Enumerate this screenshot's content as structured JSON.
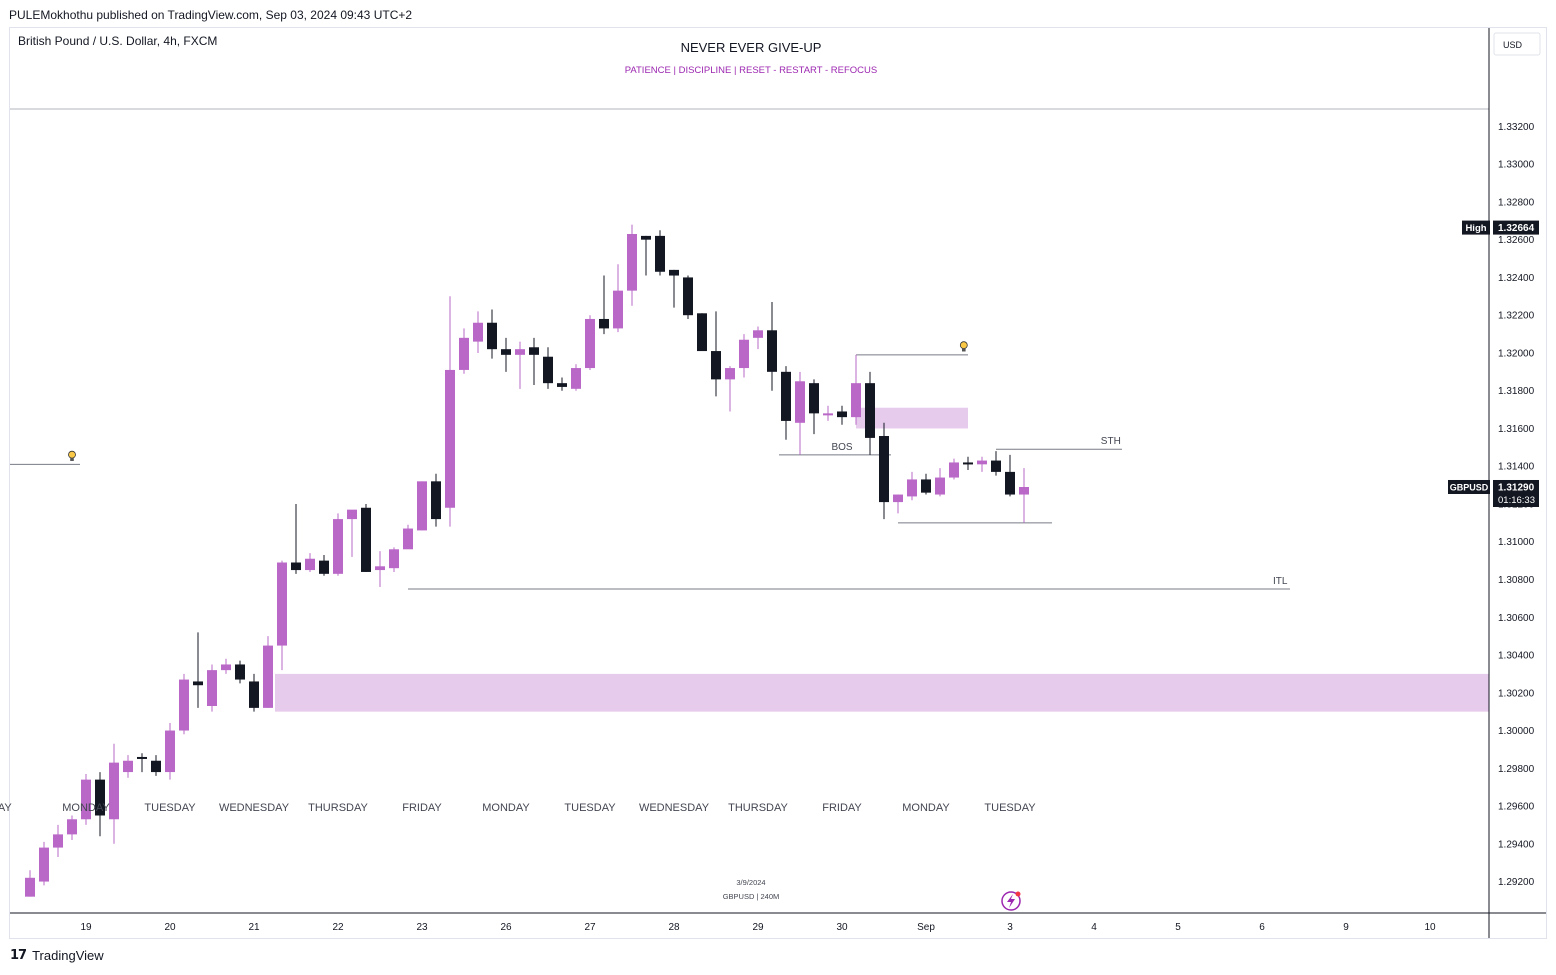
{
  "header": {
    "published": "PULEMokhothu published on TradingView.com, Sep 03, 2024 09:43 UTC+2"
  },
  "footer": {
    "brand": "TradingView"
  },
  "chart_data": {
    "type": "candlestick",
    "symbol_title": "British Pound / U.S. Dollar, 4h, FXCM",
    "title": "NEVER EVER GIVE-UP",
    "subtitle": "PATIENCE   |   DISCIPLINE   |   RESET - RESTART - REFOCUS",
    "currency": "USD",
    "colors": {
      "up": "#ba68c8",
      "down": "#131722",
      "zone": "#e1bee7",
      "subtitle": "#9c27b0"
    },
    "ylim": [
      1.2906,
      1.337
    ],
    "y_ticks": [
      "1.33200",
      "1.33000",
      "1.32800",
      "1.32600",
      "1.32400",
      "1.32200",
      "1.32000",
      "1.31800",
      "1.31600",
      "1.31400",
      "1.31200",
      "1.31000",
      "1.30800",
      "1.30600",
      "1.30400",
      "1.30200",
      "1.30000",
      "1.29800",
      "1.29600",
      "1.29400",
      "1.29200"
    ],
    "x_ticks": [
      {
        "label": "19",
        "i": 4
      },
      {
        "label": "20",
        "i": 10
      },
      {
        "label": "21",
        "i": 16
      },
      {
        "label": "22",
        "i": 22
      },
      {
        "label": "23",
        "i": 28
      },
      {
        "label": "26",
        "i": 34
      },
      {
        "label": "27",
        "i": 40
      },
      {
        "label": "28",
        "i": 46
      },
      {
        "label": "29",
        "i": 52
      },
      {
        "label": "30",
        "i": 58
      },
      {
        "label": "Sep",
        "i": 64
      },
      {
        "label": "3",
        "i": 70
      },
      {
        "label": "4",
        "i": 76
      },
      {
        "label": "5",
        "i": 82
      },
      {
        "label": "6",
        "i": 88
      },
      {
        "label": "9",
        "i": 94
      },
      {
        "label": "10",
        "i": 100
      }
    ],
    "day_labels": [
      {
        "label": "AY",
        "i": -1.8
      },
      {
        "label": "MONDAY",
        "i": 4
      },
      {
        "label": "TUESDAY",
        "i": 10
      },
      {
        "label": "WEDNESDAY",
        "i": 16
      },
      {
        "label": "THURSDAY",
        "i": 22
      },
      {
        "label": "FRIDAY",
        "i": 28
      },
      {
        "label": "MONDAY",
        "i": 34
      },
      {
        "label": "TUESDAY",
        "i": 40
      },
      {
        "label": "WEDNESDAY",
        "i": 46
      },
      {
        "label": "THURSDAY",
        "i": 52
      },
      {
        "label": "FRIDAY",
        "i": 58
      },
      {
        "label": "MONDAY",
        "i": 64
      },
      {
        "label": "TUESDAY",
        "i": 70
      }
    ],
    "candles": [
      [
        1.2912,
        1.2922,
        1.2912,
        1.2926
      ],
      [
        1.292,
        1.2938,
        1.2918,
        1.2941
      ],
      [
        1.2938,
        1.2945,
        1.2933,
        1.295
      ],
      [
        1.2945,
        1.2953,
        1.2942,
        1.2955
      ],
      [
        1.2953,
        1.2974,
        1.295,
        1.2977
      ],
      [
        1.2974,
        1.2955,
        1.2944,
        1.2978
      ],
      [
        1.2953,
        1.2983,
        1.294,
        1.2993
      ],
      [
        1.2978,
        1.2984,
        1.2975,
        1.2987
      ],
      [
        1.2986,
        1.2985,
        1.2978,
        1.2988
      ],
      [
        1.2984,
        1.2978,
        1.2976,
        1.2987
      ],
      [
        1.2978,
        1.3,
        1.2974,
        1.3004
      ],
      [
        1.3,
        1.3027,
        1.2998,
        1.303
      ],
      [
        1.3026,
        1.3024,
        1.3012,
        1.3052
      ],
      [
        1.3013,
        1.3032,
        1.301,
        1.3035
      ],
      [
        1.3032,
        1.3035,
        1.303,
        1.3038
      ],
      [
        1.3035,
        1.3027,
        1.3025,
        1.3037
      ],
      [
        1.3026,
        1.3012,
        1.301,
        1.303
      ],
      [
        1.3012,
        1.3045,
        1.3012,
        1.305
      ],
      [
        1.3045,
        1.3089,
        1.3032,
        1.309
      ],
      [
        1.3089,
        1.3085,
        1.3083,
        1.312
      ],
      [
        1.3085,
        1.3091,
        1.3084,
        1.3094
      ],
      [
        1.309,
        1.3083,
        1.3082,
        1.3093
      ],
      [
        1.3083,
        1.3112,
        1.3082,
        1.3115
      ],
      [
        1.3112,
        1.3117,
        1.3092,
        1.3115
      ],
      [
        1.3118,
        1.3084,
        1.3084,
        1.312
      ],
      [
        1.3085,
        1.3087,
        1.3076,
        1.3095
      ],
      [
        1.3086,
        1.3096,
        1.3084,
        1.3097
      ],
      [
        1.3096,
        1.3107,
        1.3098,
        1.3109
      ],
      [
        1.3106,
        1.3132,
        1.3106,
        1.3132
      ],
      [
        1.3132,
        1.3112,
        1.3108,
        1.3136
      ],
      [
        1.3118,
        1.3191,
        1.3108,
        1.323
      ],
      [
        1.3191,
        1.3208,
        1.3189,
        1.3213
      ],
      [
        1.3206,
        1.3216,
        1.32,
        1.3222
      ],
      [
        1.3216,
        1.3202,
        1.3197,
        1.3223
      ],
      [
        1.3202,
        1.3199,
        1.319,
        1.3208
      ],
      [
        1.3199,
        1.3202,
        1.3181,
        1.3206
      ],
      [
        1.3203,
        1.3199,
        1.3183,
        1.3208
      ],
      [
        1.3198,
        1.3184,
        1.3181,
        1.3203
      ],
      [
        1.3184,
        1.3182,
        1.318,
        1.3187
      ],
      [
        1.3181,
        1.3192,
        1.318,
        1.3194
      ],
      [
        1.3192,
        1.3218,
        1.3191,
        1.322
      ],
      [
        1.3218,
        1.3213,
        1.321,
        1.3241
      ],
      [
        1.3213,
        1.3233,
        1.3211,
        1.3247
      ],
      [
        1.3233,
        1.3263,
        1.3225,
        1.3268
      ],
      [
        1.3262,
        1.326,
        1.3241,
        1.3262
      ],
      [
        1.3262,
        1.3243,
        1.3241,
        1.3265
      ],
      [
        1.3244,
        1.3241,
        1.3224,
        1.3244
      ],
      [
        1.324,
        1.322,
        1.3218,
        1.3241
      ],
      [
        1.3221,
        1.3201,
        1.3201,
        1.3221
      ],
      [
        1.3201,
        1.3186,
        1.3177,
        1.3222
      ],
      [
        1.3186,
        1.3192,
        1.3169,
        1.3193
      ],
      [
        1.3192,
        1.3207,
        1.3187,
        1.321
      ],
      [
        1.3208,
        1.3212,
        1.3202,
        1.3214
      ],
      [
        1.3212,
        1.319,
        1.318,
        1.3227
      ],
      [
        1.319,
        1.3164,
        1.3154,
        1.3193
      ],
      [
        1.3163,
        1.3185,
        1.3146,
        1.319
      ],
      [
        1.3184,
        1.3168,
        1.3157,
        1.3186
      ],
      [
        1.3168,
        1.3168,
        1.3164,
        1.3172
      ],
      [
        1.3169,
        1.3166,
        1.3162,
        1.3172
      ],
      [
        1.3166,
        1.3184,
        1.3162,
        1.3199
      ],
      [
        1.3184,
        1.3155,
        1.3146,
        1.319
      ],
      [
        1.3156,
        1.3121,
        1.3112,
        1.3163
      ],
      [
        1.3121,
        1.3125,
        1.3115,
        1.3125
      ],
      [
        1.3124,
        1.3133,
        1.3122,
        1.3137
      ],
      [
        1.3133,
        1.3126,
        1.3125,
        1.3136
      ],
      [
        1.3125,
        1.3134,
        1.3124,
        1.3139
      ],
      [
        1.3134,
        1.3142,
        1.3133,
        1.3144
      ],
      [
        1.3142,
        1.3141,
        1.3138,
        1.3145
      ],
      [
        1.3141,
        1.3143,
        1.3137,
        1.3145
      ],
      [
        1.3143,
        1.3137,
        1.3135,
        1.3148
      ],
      [
        1.3137,
        1.3125,
        1.3124,
        1.3146
      ],
      [
        1.3125,
        1.3129,
        1.311,
        1.3139
      ]
    ],
    "zones": [
      {
        "from_i": 17.5,
        "to_i": 107.0,
        "top": 1.303,
        "bottom": 1.301
      },
      {
        "from_i": 59.0,
        "to_i": 67.0,
        "top": 1.3171,
        "bottom": 1.316
      }
    ],
    "lines": [
      {
        "from_i": 27.0,
        "to_i": 90.0,
        "y": 1.3075,
        "label": "ITL",
        "label_i": 89.3
      },
      {
        "from_i": 53.5,
        "to_i": 61.5,
        "y": 1.3146,
        "label": "BOS",
        "label_i": 58.0
      },
      {
        "from_i": 69.0,
        "to_i": 78.0,
        "y": 1.3149,
        "label": "STH",
        "label_i": 77.2
      },
      {
        "from_i": 62.0,
        "to_i": 73.0,
        "y": 1.311,
        "label": "",
        "label_i": 0
      },
      {
        "from_i": 59.0,
        "to_i": 67.0,
        "y": 1.3199,
        "label": "",
        "label_i": 0
      }
    ],
    "alerts": [
      {
        "i": 66.7,
        "y": 1.3202
      },
      {
        "i": 3.0,
        "y": 1.3144
      }
    ],
    "high": {
      "label": "High",
      "value": "1.32664"
    },
    "last": {
      "symbol": "GBPUSD",
      "value": "1.31290",
      "countdown": "01:16:33"
    },
    "watermark": {
      "date": "3/9/2024",
      "sub": "GBPUSD | 240M"
    }
  }
}
